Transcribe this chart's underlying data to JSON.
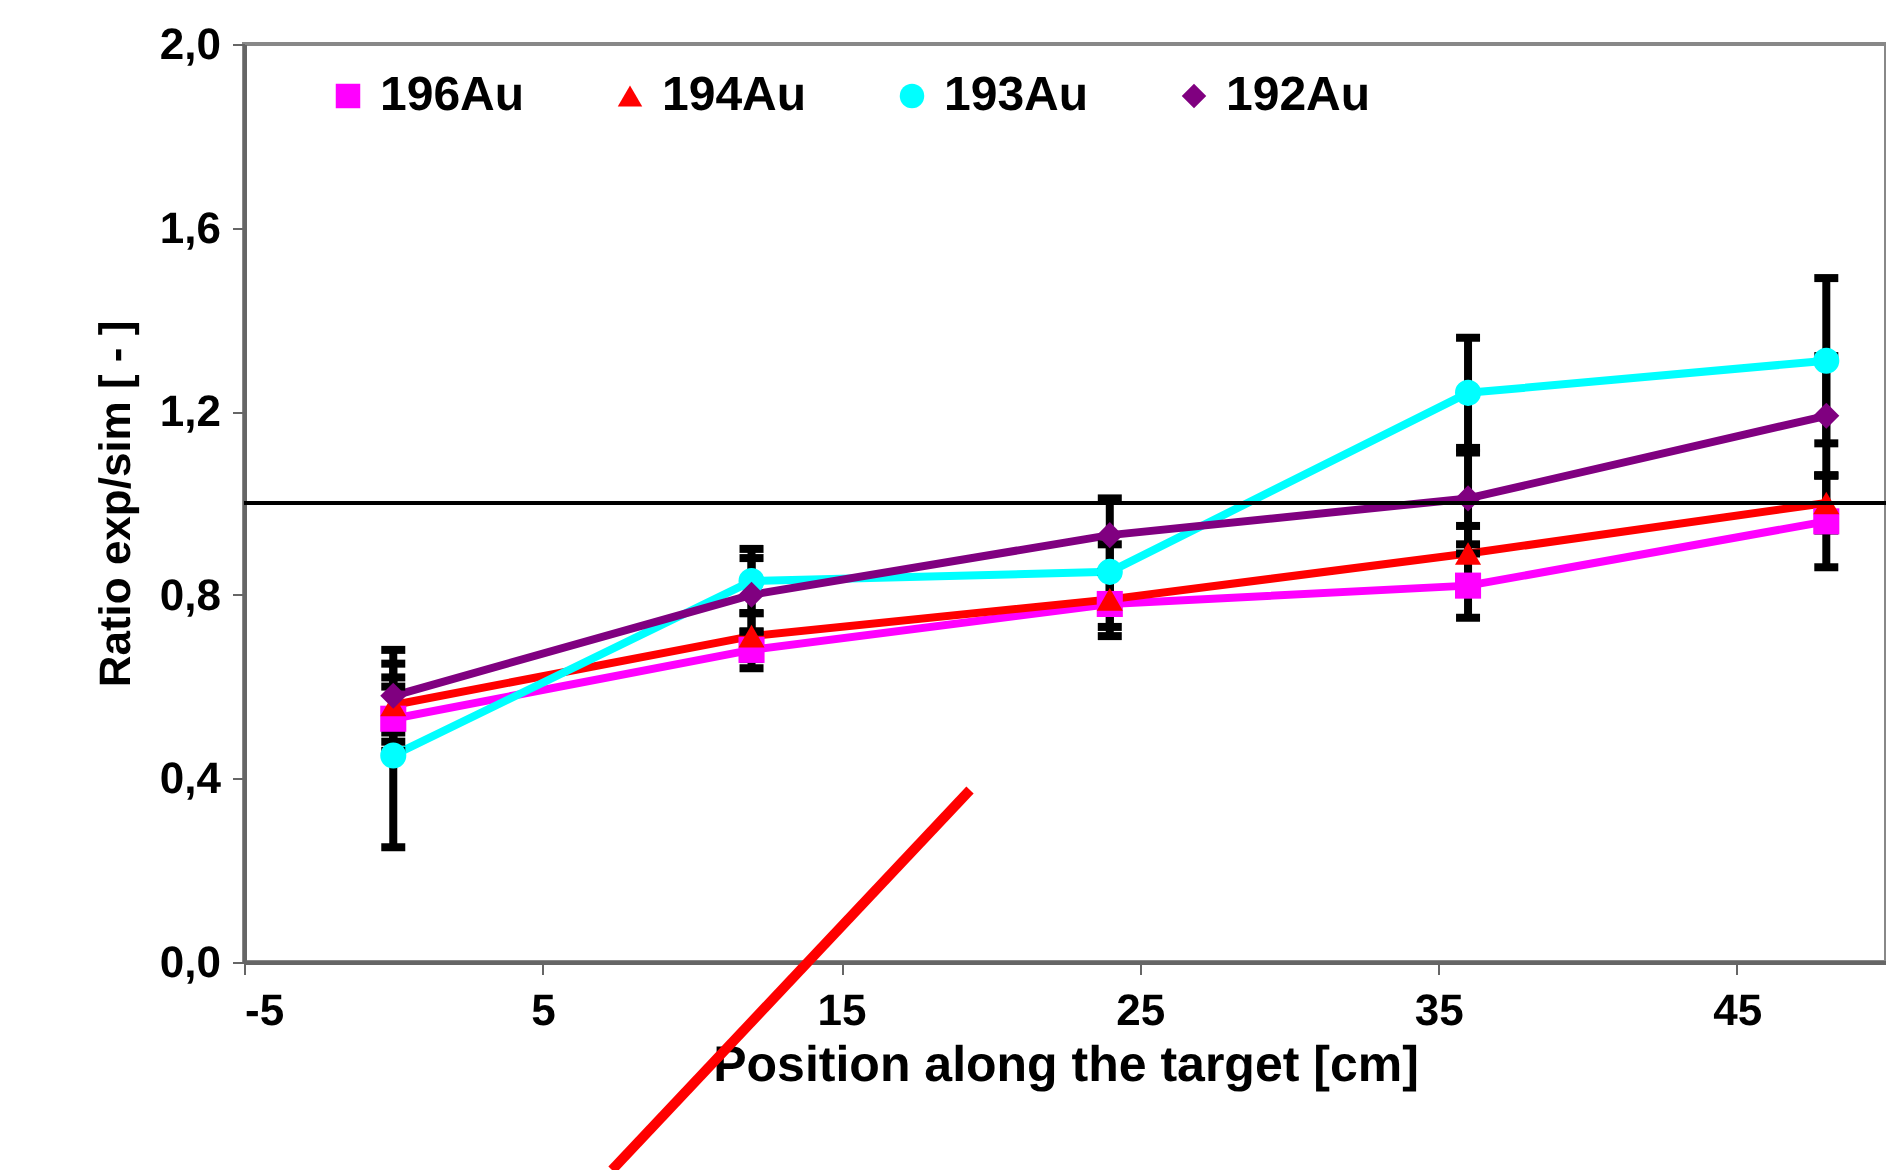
{
  "chart_data": {
    "type": "line",
    "xlabel": "Position along the target [cm]",
    "ylabel": "Ratio exp/sim [ - ]",
    "x": [
      0,
      12,
      24,
      36,
      48
    ],
    "xlim": [
      -5,
      50
    ],
    "xticks": [
      -5,
      5,
      15,
      25,
      35,
      45
    ],
    "ylim": [
      0,
      2
    ],
    "yticks": [
      {
        "value": 0,
        "label": "0,0"
      },
      {
        "value": 0.4,
        "label": "0,4"
      },
      {
        "value": 0.8,
        "label": "0,8"
      },
      {
        "value": 1.2,
        "label": "1,2"
      },
      {
        "value": 1.6,
        "label": "1,6"
      },
      {
        "value": 2,
        "label": "2,0"
      }
    ],
    "series": [
      {
        "name": "196Au",
        "color": "#ff00ff",
        "marker": "square",
        "values": [
          0.53,
          0.68,
          0.78,
          0.82,
          0.96
        ],
        "errors": [
          0.07,
          0.04,
          0.07,
          0.07,
          0.1
        ]
      },
      {
        "name": "194Au",
        "color": "#ff0000",
        "marker": "triangle",
        "values": [
          0.56,
          0.71,
          0.79,
          0.89,
          1.0
        ],
        "errors": [
          0.06,
          0.05,
          0.06,
          0.06,
          0.06
        ]
      },
      {
        "name": "193Au",
        "color": "#00ffff",
        "marker": "circle",
        "values": [
          0.45,
          0.83,
          0.85,
          1.24,
          1.31
        ],
        "errors": [
          0.2,
          0.07,
          0.06,
          0.12,
          0.18
        ]
      },
      {
        "name": "192Au",
        "color": "#800080",
        "marker": "diamond",
        "values": [
          0.58,
          0.8,
          0.93,
          1.01,
          1.19
        ],
        "errors": [
          0.1,
          0.08,
          0.08,
          0.1,
          0.13
        ]
      }
    ],
    "ref_lines": [
      {
        "axis": "y",
        "value": 1.0,
        "color": "#000000"
      }
    ],
    "grid": false,
    "legend": "top"
  }
}
